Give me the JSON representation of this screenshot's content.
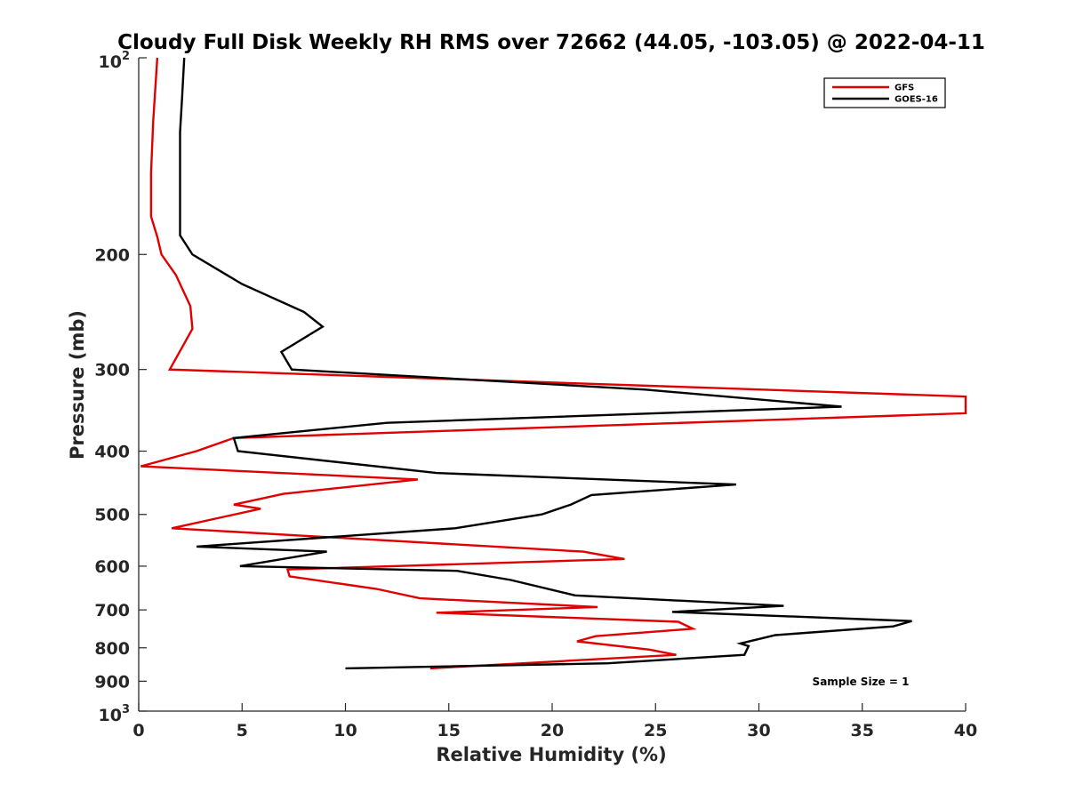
{
  "chart_data": {
    "type": "line",
    "title": "Cloudy Full Disk Weekly RH RMS over 72662 (44.05, -103.05) @ 2022-04-11",
    "xlabel": "Relative Humidity (%)",
    "ylabel": "Pressure (mb)",
    "xlim": [
      0,
      40
    ],
    "ylim": [
      100,
      1000
    ],
    "y_scale": "log",
    "y_reversed": true,
    "x_ticks": [
      "0",
      "5",
      "10",
      "15",
      "20",
      "25",
      "30",
      "35",
      "40"
    ],
    "y_ticks": [
      {
        "value": 100,
        "base": "10",
        "exp": "2"
      },
      {
        "value": 200,
        "label": "200"
      },
      {
        "value": 300,
        "label": "300"
      },
      {
        "value": 400,
        "label": "400"
      },
      {
        "value": 500,
        "label": "500"
      },
      {
        "value": 600,
        "label": "600"
      },
      {
        "value": 700,
        "label": "700"
      },
      {
        "value": 800,
        "label": "800"
      },
      {
        "value": 900,
        "label": "900"
      },
      {
        "value": 1000,
        "base": "10",
        "exp": "3"
      }
    ],
    "legend_position": "top-right",
    "grid": false,
    "annotation": "Sample Size = 1",
    "series": [
      {
        "name": "GFS",
        "color": "#e00000",
        "points": [
          [
            0.9,
            100
          ],
          [
            0.7,
            125
          ],
          [
            0.6,
            150
          ],
          [
            0.6,
            175
          ],
          [
            0.9,
            188
          ],
          [
            1.1,
            200
          ],
          [
            1.8,
            215
          ],
          [
            2.5,
            240
          ],
          [
            2.6,
            260
          ],
          [
            1.5,
            300
          ],
          [
            40.0,
            330
          ],
          [
            40.0,
            350
          ],
          [
            4.6,
            382
          ],
          [
            2.8,
            400
          ],
          [
            0.1,
            422
          ],
          [
            13.5,
            442
          ],
          [
            7.0,
            465
          ],
          [
            4.6,
            483
          ],
          [
            5.9,
            490
          ],
          [
            1.6,
            525
          ],
          [
            21.5,
            570
          ],
          [
            23.5,
            585
          ],
          [
            7.2,
            607
          ],
          [
            7.3,
            622
          ],
          [
            11.5,
            650
          ],
          [
            13.6,
            672
          ],
          [
            22.2,
            693
          ],
          [
            14.4,
            707
          ],
          [
            26.1,
            730
          ],
          [
            26.8,
            748
          ],
          [
            22.1,
            768
          ],
          [
            21.2,
            782
          ],
          [
            24.7,
            805
          ],
          [
            26.0,
            820
          ],
          [
            14.1,
            860
          ]
        ]
      },
      {
        "name": "GOES-16",
        "color": "#000000",
        "points": [
          [
            2.2,
            100
          ],
          [
            2.1,
            115
          ],
          [
            2.0,
            130
          ],
          [
            2.0,
            175
          ],
          [
            2.0,
            187
          ],
          [
            2.6,
            200
          ],
          [
            5.0,
            222
          ],
          [
            8.0,
            245
          ],
          [
            8.9,
            258
          ],
          [
            6.9,
            282
          ],
          [
            7.4,
            300
          ],
          [
            24.5,
            322
          ],
          [
            34.0,
            342
          ],
          [
            12.0,
            362
          ],
          [
            4.6,
            382
          ],
          [
            4.8,
            400
          ],
          [
            14.4,
            432
          ],
          [
            28.9,
            450
          ],
          [
            21.9,
            467
          ],
          [
            20.9,
            483
          ],
          [
            19.5,
            500
          ],
          [
            15.3,
            525
          ],
          [
            2.8,
            560
          ],
          [
            9.1,
            570
          ],
          [
            4.9,
            600
          ],
          [
            15.4,
            610
          ],
          [
            18.0,
            630
          ],
          [
            21.1,
            665
          ],
          [
            31.2,
            690
          ],
          [
            25.8,
            705
          ],
          [
            37.4,
            728
          ],
          [
            36.5,
            742
          ],
          [
            30.8,
            765
          ],
          [
            29.1,
            788
          ],
          [
            29.5,
            795
          ],
          [
            29.3,
            820
          ],
          [
            22.7,
            845
          ],
          [
            10.0,
            860
          ]
        ]
      }
    ]
  }
}
